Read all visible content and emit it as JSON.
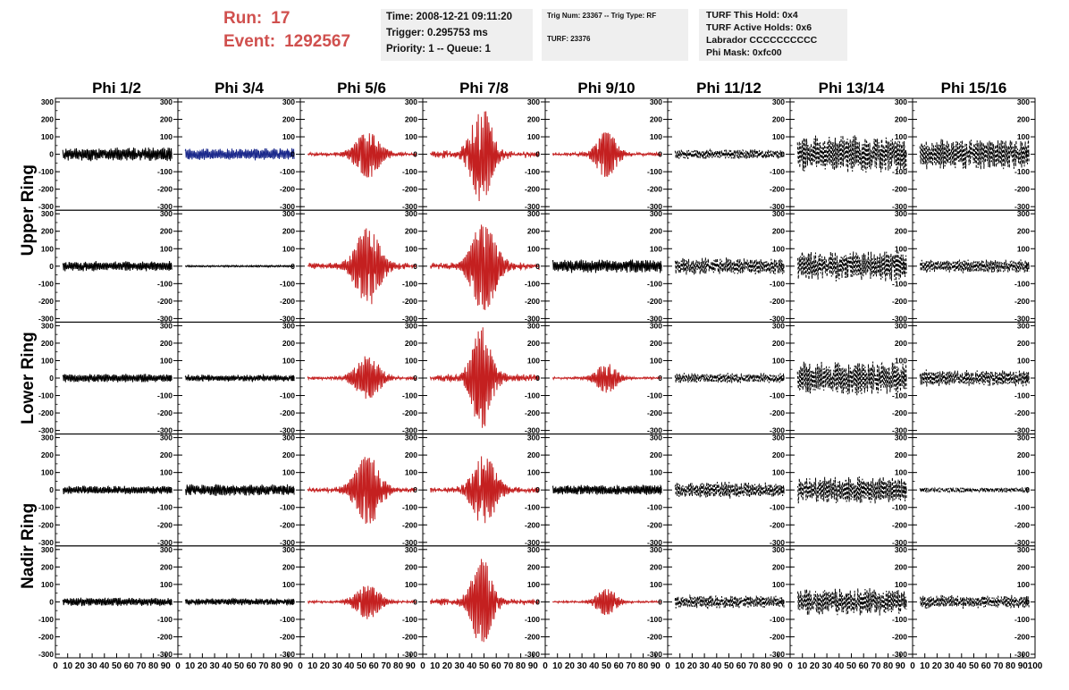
{
  "header": {
    "run_label": "Run:",
    "run_value": "17",
    "event_label": "Event:",
    "event_value": "1292567",
    "time": "Time: 2008-12-21 09:11:20",
    "trigger": "Trigger: 0.295753 ms",
    "priority": "Priority: 1 -- Queue: 1",
    "trig_num": "Trig Num: 23367 -- Trig Type: RF",
    "turf": "TURF: 23376",
    "turf_this_hold": "TURF This Hold: 0x4",
    "turf_active_holds": "TURF Active Holds: 0x6",
    "labrador": "Labrador CCCCCCCCCC",
    "phi_mask": "Phi Mask: 0xfc00",
    "accent_color": "#d0504e"
  },
  "chart_data": {
    "type": "line",
    "columns": [
      "Phi 1/2",
      "Phi 3/4",
      "Phi 5/6",
      "Phi 7/8",
      "Phi 9/10",
      "Phi 11/12",
      "Phi 13/14",
      "Phi 15/16"
    ],
    "row_labels": [
      "Upper Ring",
      "Lower Ring",
      "Nadir Ring"
    ],
    "ylim": [
      -300,
      300
    ],
    "xlim": [
      0,
      100
    ],
    "y_ticks": [
      -300,
      -200,
      -100,
      0,
      100,
      200,
      300
    ],
    "x_ticks": [
      0,
      10,
      20,
      30,
      40,
      50,
      60,
      70,
      80,
      90,
      100
    ],
    "x_tick_labels": [
      "0",
      "10",
      "20",
      "30",
      "40",
      "50",
      "60",
      "70",
      "80",
      "90",
      "100"
    ],
    "trace_colors": {
      "normal": "#000000",
      "triggered": "#c42020",
      "masked": "#1c2a8c"
    },
    "panels": [
      [
        {
          "style": "normal",
          "amp": 40,
          "center": 0.5,
          "width": 1.0,
          "dashed": false
        },
        {
          "style": "masked",
          "amp": 35,
          "center": 0.5,
          "width": 1.0,
          "dashed": false
        },
        {
          "style": "triggered",
          "amp": 140,
          "center": 0.55,
          "width": 0.12,
          "dashed": false
        },
        {
          "style": "triggered",
          "amp": 300,
          "center": 0.48,
          "width": 0.1,
          "dashed": false
        },
        {
          "style": "triggered",
          "amp": 140,
          "center": 0.5,
          "width": 0.1,
          "dashed": false
        },
        {
          "style": "normal",
          "amp": 30,
          "center": 0.5,
          "width": 1.0,
          "dashed": true
        },
        {
          "style": "normal",
          "amp": 110,
          "center": 0.5,
          "width": 1.0,
          "dashed": true
        },
        {
          "style": "normal",
          "amp": 90,
          "center": 0.5,
          "width": 1.0,
          "dashed": true
        }
      ],
      [
        {
          "style": "normal",
          "amp": 30,
          "center": 0.5,
          "width": 1.0,
          "dashed": false
        },
        {
          "style": "normal",
          "amp": 5,
          "center": 0.5,
          "width": 1.0,
          "dashed": false
        },
        {
          "style": "triggered",
          "amp": 240,
          "center": 0.55,
          "width": 0.12,
          "dashed": false
        },
        {
          "style": "triggered",
          "amp": 270,
          "center": 0.5,
          "width": 0.12,
          "dashed": false
        },
        {
          "style": "normal",
          "amp": 40,
          "center": 0.5,
          "width": 1.0,
          "dashed": false
        },
        {
          "style": "normal",
          "amp": 50,
          "center": 0.5,
          "width": 1.0,
          "dashed": true
        },
        {
          "style": "normal",
          "amp": 90,
          "center": 0.5,
          "width": 1.0,
          "dashed": true
        },
        {
          "style": "normal",
          "amp": 40,
          "center": 0.5,
          "width": 1.0,
          "dashed": true
        }
      ],
      [
        {
          "style": "normal",
          "amp": 25,
          "center": 0.5,
          "width": 1.0,
          "dashed": false
        },
        {
          "style": "normal",
          "amp": 20,
          "center": 0.5,
          "width": 1.0,
          "dashed": false
        },
        {
          "style": "triggered",
          "amp": 130,
          "center": 0.55,
          "width": 0.12,
          "dashed": false
        },
        {
          "style": "triggered",
          "amp": 300,
          "center": 0.48,
          "width": 0.1,
          "dashed": false
        },
        {
          "style": "triggered",
          "amp": 90,
          "center": 0.5,
          "width": 0.1,
          "dashed": false
        },
        {
          "style": "normal",
          "amp": 30,
          "center": 0.5,
          "width": 1.0,
          "dashed": true
        },
        {
          "style": "normal",
          "amp": 100,
          "center": 0.5,
          "width": 1.0,
          "dashed": true
        },
        {
          "style": "normal",
          "amp": 50,
          "center": 0.5,
          "width": 1.0,
          "dashed": true
        }
      ],
      [
        {
          "style": "normal",
          "amp": 25,
          "center": 0.5,
          "width": 1.0,
          "dashed": false
        },
        {
          "style": "normal",
          "amp": 35,
          "center": 0.5,
          "width": 1.0,
          "dashed": false
        },
        {
          "style": "triggered",
          "amp": 210,
          "center": 0.55,
          "width": 0.12,
          "dashed": false
        },
        {
          "style": "triggered",
          "amp": 210,
          "center": 0.5,
          "width": 0.12,
          "dashed": false
        },
        {
          "style": "normal",
          "amp": 30,
          "center": 0.5,
          "width": 1.0,
          "dashed": false
        },
        {
          "style": "normal",
          "amp": 50,
          "center": 0.5,
          "width": 1.0,
          "dashed": true
        },
        {
          "style": "normal",
          "amp": 80,
          "center": 0.5,
          "width": 1.0,
          "dashed": true
        },
        {
          "style": "normal",
          "amp": 15,
          "center": 0.5,
          "width": 1.0,
          "dashed": true
        }
      ],
      [
        {
          "style": "normal",
          "amp": 25,
          "center": 0.5,
          "width": 1.0,
          "dashed": false
        },
        {
          "style": "normal",
          "amp": 20,
          "center": 0.5,
          "width": 1.0,
          "dashed": false
        },
        {
          "style": "triggered",
          "amp": 100,
          "center": 0.55,
          "width": 0.12,
          "dashed": false
        },
        {
          "style": "triggered",
          "amp": 260,
          "center": 0.48,
          "width": 0.1,
          "dashed": false
        },
        {
          "style": "triggered",
          "amp": 80,
          "center": 0.5,
          "width": 0.1,
          "dashed": false
        },
        {
          "style": "normal",
          "amp": 40,
          "center": 0.5,
          "width": 1.0,
          "dashed": true
        },
        {
          "style": "normal",
          "amp": 80,
          "center": 0.5,
          "width": 1.0,
          "dashed": true
        },
        {
          "style": "normal",
          "amp": 40,
          "center": 0.5,
          "width": 1.0,
          "dashed": true
        }
      ]
    ]
  }
}
